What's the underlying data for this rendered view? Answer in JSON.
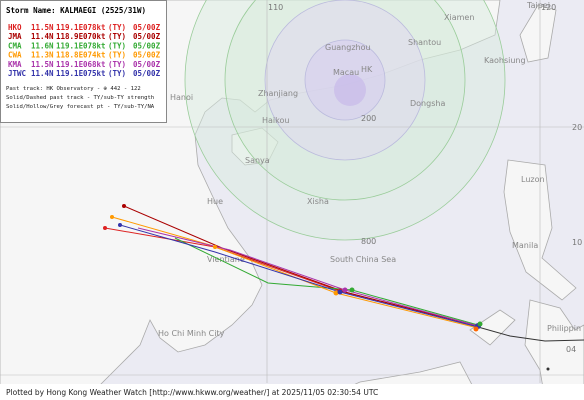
{
  "storm": {
    "title": "Storm Name: KALMAEGI (2525/31W)",
    "rows": [
      [
        "HKO",
        "11.5N",
        "119.1E",
        "078kt",
        "(TY)",
        "05/00Z"
      ],
      [
        "JMA",
        "11.4N",
        "118.9E",
        "070kt",
        "(TY)",
        "05/00Z"
      ],
      [
        "CMA",
        "11.6N",
        "119.1E",
        "078kt",
        "(TY)",
        "05/00Z"
      ],
      [
        "CWA",
        "11.3N",
        "118.8E",
        "074kt",
        "(TY)",
        "05/00Z"
      ],
      [
        "KMA",
        "11.5N",
        "119.1E",
        "068kt",
        "(TY)",
        "05/00Z"
      ],
      [
        "JTWC",
        "11.4N",
        "119.1E",
        "075kt",
        "(TY)",
        "05/00Z"
      ]
    ]
  },
  "legend": [
    "Past track: HK Observatory - ⊕ 442 - 122",
    "Solid/Dashed past track - TY/sub-TY strength",
    "Solid/Hollow/Grey forecast pt - TY/sub-TY/NA"
  ],
  "grid": {
    "lon": [
      "110",
      "120"
    ],
    "lat": [
      "20",
      "10"
    ]
  },
  "rings": [
    "200",
    "800"
  ],
  "places": [
    "Xiamen",
    "Taipei",
    "Guangzhou",
    "Shantou",
    "Kaohsiung",
    "Macau",
    "HK",
    "Zhanjiang",
    "Dongsha",
    "Hanoi",
    "Haikou",
    "Sanya",
    "Xisha",
    "Luzon",
    "Hue",
    "Vientiane",
    "South China Sea",
    "Manila",
    "Ho Chi Minh City",
    "Philippin"
  ],
  "corner_label": "04",
  "footer": "Plotted by Hong Kong Weather Watch [http://www.hkww.org/weather/] at 2025/11/05 02:30:54 UTC"
}
